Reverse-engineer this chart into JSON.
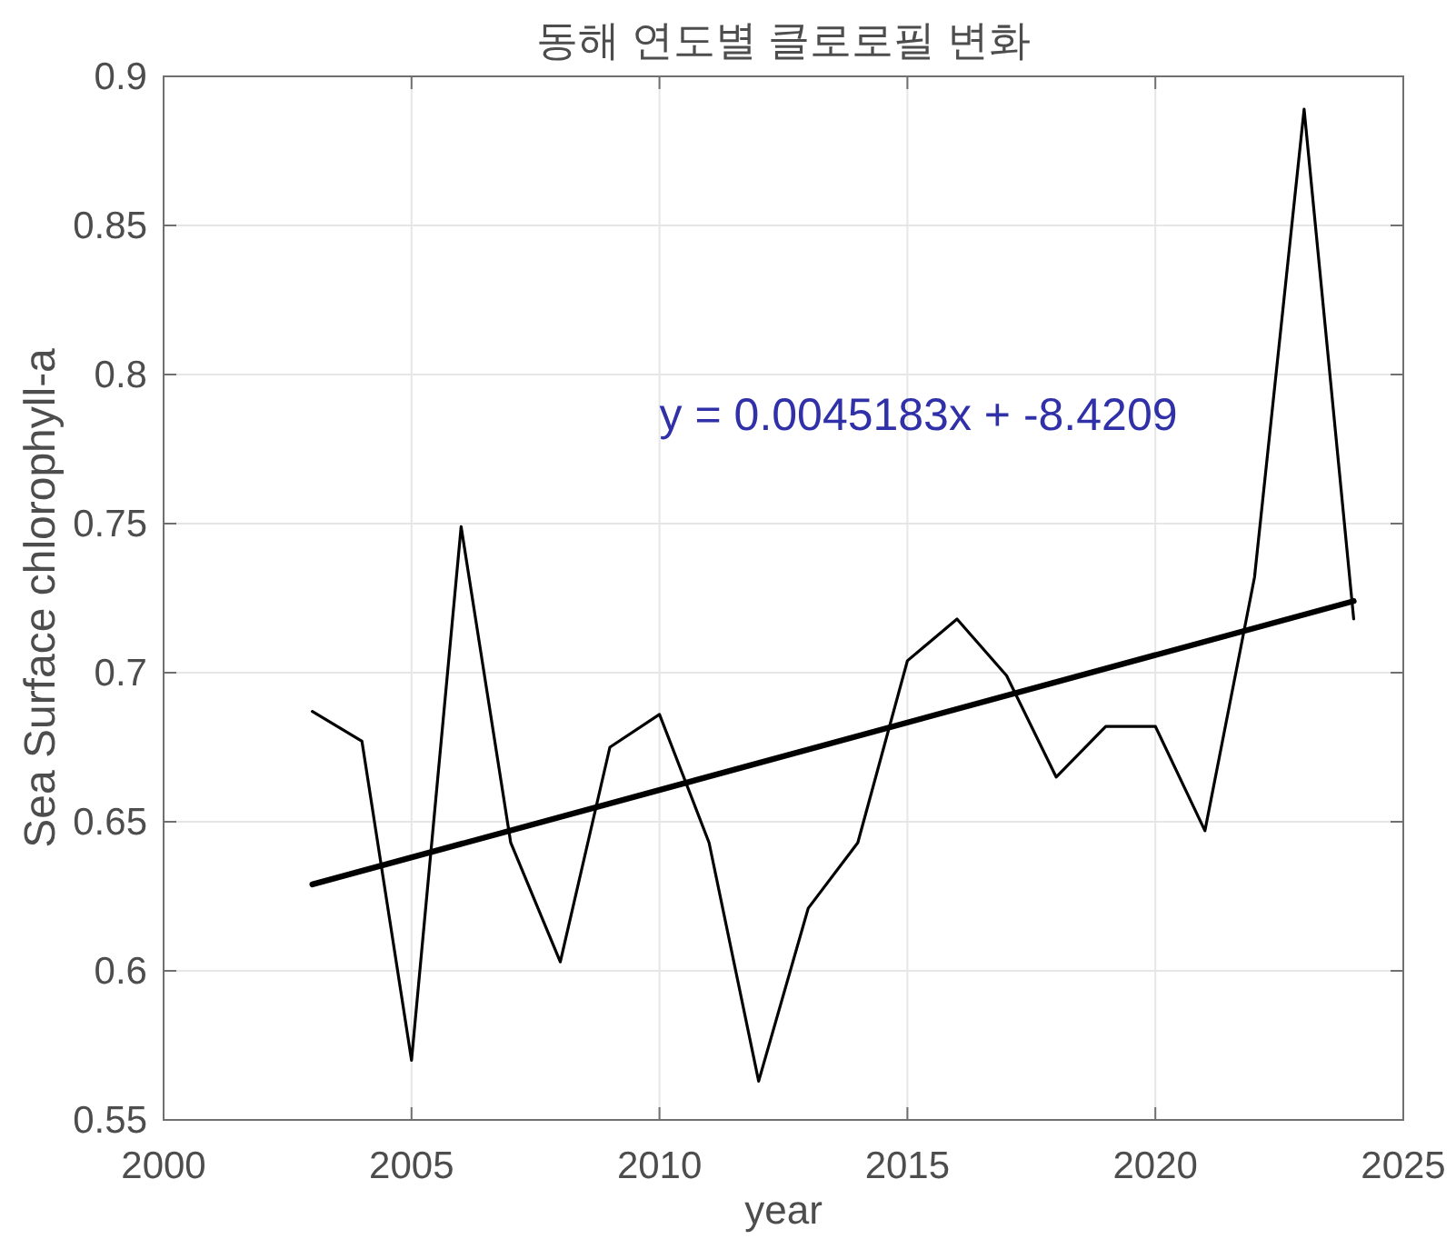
{
  "chart_data": {
    "type": "line",
    "title": "동해 연도별 클로로필 변화",
    "xlabel": "year",
    "ylabel": "Sea Surface chlorophyll-a",
    "x": [
      2003,
      2004,
      2005,
      2006,
      2007,
      2008,
      2009,
      2010,
      2011,
      2012,
      2013,
      2014,
      2015,
      2016,
      2017,
      2018,
      2019,
      2020,
      2021,
      2022,
      2023,
      2024
    ],
    "series": [
      {
        "color": "#000000",
        "values": [
          0.687,
          0.677,
          0.57,
          0.749,
          0.643,
          0.603,
          0.675,
          0.686,
          0.643,
          0.563,
          0.621,
          0.643,
          0.704,
          0.718,
          0.699,
          0.665,
          0.682,
          0.682,
          0.647,
          0.732,
          0.889,
          0.718
        ]
      },
      {
        "type": "line",
        "color": "#000000",
        "x": [
          2003,
          2024
        ],
        "values": [
          0.629,
          0.724
        ]
      }
    ],
    "annotations": [
      "y = 0.0045183x + -8.4209"
    ],
    "xlim": [
      2000,
      2025
    ],
    "xticks": [
      2000,
      2005,
      2010,
      2015,
      2020,
      2025
    ],
    "ylim": [
      0.55,
      0.9
    ],
    "yticks": [
      0.55,
      0.6,
      0.65,
      0.7,
      0.75,
      0.8,
      0.85,
      0.9
    ],
    "grid": true
  }
}
